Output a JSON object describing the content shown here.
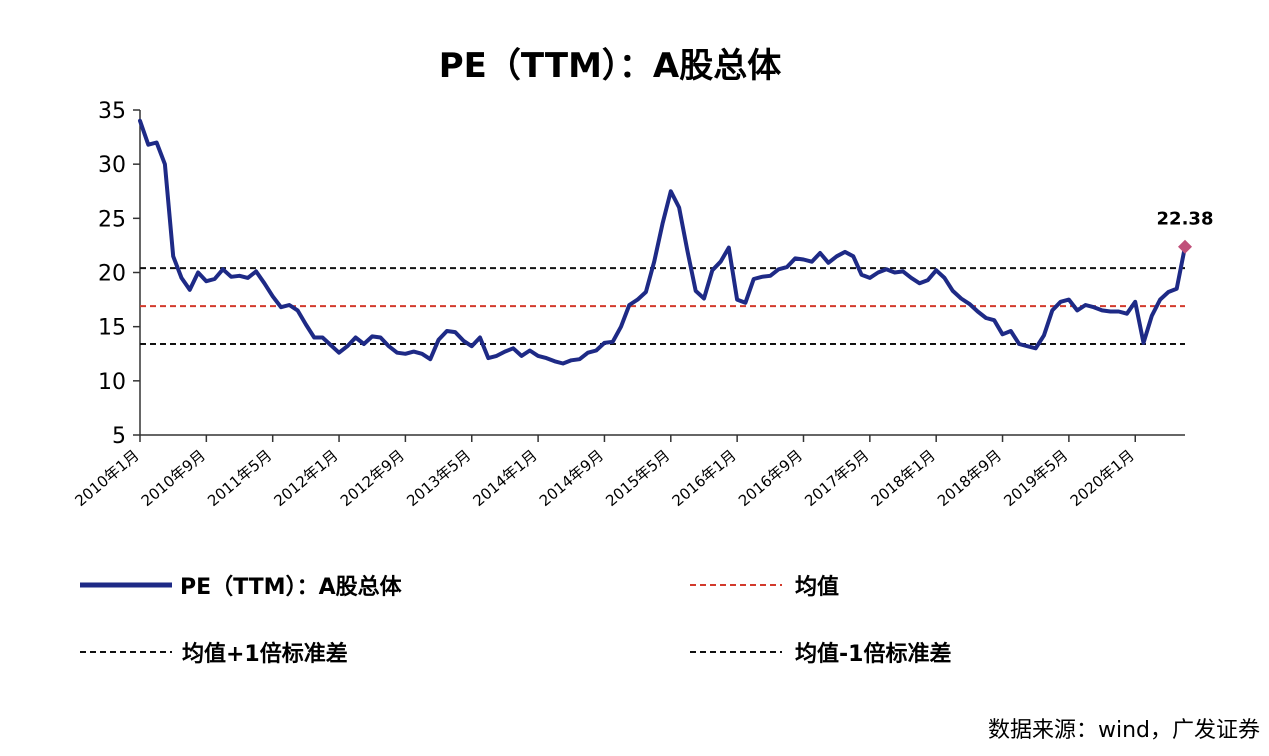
{
  "chart_data": {
    "type": "line",
    "title": "PE（TTM）：A股总体",
    "xlabel": "",
    "ylabel": "",
    "ylim": [
      5,
      35
    ],
    "yticks": [
      5,
      10,
      15,
      20,
      25,
      30,
      35
    ],
    "x_tick_labels": [
      "2010年1月",
      "2010年9月",
      "2011年5月",
      "2012年1月",
      "2012年9月",
      "2013年5月",
      "2014年1月",
      "2014年9月",
      "2015年5月",
      "2016年1月",
      "2016年9月",
      "2017年5月",
      "2018年1月",
      "2018年9月",
      "2019年5月",
      "2020年1月"
    ],
    "x_tick_month_index": [
      0,
      8,
      16,
      24,
      32,
      40,
      48,
      56,
      64,
      72,
      80,
      88,
      96,
      104,
      112,
      120
    ],
    "x_month_count": 127,
    "grid": false,
    "legend_position": "bottom",
    "series": [
      {
        "name": "PE（TTM）：A股总体",
        "color": "#1e2a86",
        "style": "solid",
        "points": [
          [
            0,
            34.0
          ],
          [
            1,
            31.8
          ],
          [
            2,
            32.0
          ],
          [
            3,
            30.0
          ],
          [
            4,
            21.5
          ],
          [
            5,
            19.5
          ],
          [
            6,
            18.4
          ],
          [
            7,
            20.0
          ],
          [
            8,
            19.2
          ],
          [
            9,
            19.4
          ],
          [
            10,
            20.3
          ],
          [
            11,
            19.6
          ],
          [
            12,
            19.7
          ],
          [
            13,
            19.5
          ],
          [
            14,
            20.1
          ],
          [
            15,
            19.0
          ],
          [
            16,
            17.8
          ],
          [
            17,
            16.8
          ],
          [
            18,
            17.0
          ],
          [
            19,
            16.5
          ],
          [
            20,
            15.2
          ],
          [
            21,
            14.0
          ],
          [
            22,
            14.0
          ],
          [
            23,
            13.3
          ],
          [
            24,
            12.6
          ],
          [
            25,
            13.2
          ],
          [
            26,
            14.0
          ],
          [
            27,
            13.4
          ],
          [
            28,
            14.1
          ],
          [
            29,
            14.0
          ],
          [
            30,
            13.2
          ],
          [
            31,
            12.6
          ],
          [
            32,
            12.5
          ],
          [
            33,
            12.7
          ],
          [
            34,
            12.5
          ],
          [
            35,
            12.0
          ],
          [
            36,
            13.8
          ],
          [
            37,
            14.6
          ],
          [
            38,
            14.5
          ],
          [
            39,
            13.7
          ],
          [
            40,
            13.2
          ],
          [
            41,
            14.0
          ],
          [
            42,
            12.1
          ],
          [
            43,
            12.3
          ],
          [
            44,
            12.7
          ],
          [
            45,
            13.0
          ],
          [
            46,
            12.3
          ],
          [
            47,
            12.8
          ],
          [
            48,
            12.3
          ],
          [
            49,
            12.1
          ],
          [
            50,
            11.8
          ],
          [
            51,
            11.6
          ],
          [
            52,
            11.9
          ],
          [
            53,
            12.0
          ],
          [
            54,
            12.6
          ],
          [
            55,
            12.8
          ],
          [
            56,
            13.5
          ],
          [
            57,
            13.6
          ],
          [
            58,
            15.0
          ],
          [
            59,
            17.0
          ],
          [
            60,
            17.5
          ],
          [
            61,
            18.2
          ],
          [
            62,
            21.0
          ],
          [
            63,
            24.5
          ],
          [
            64,
            27.5
          ],
          [
            65,
            26.0
          ],
          [
            66,
            22.0
          ],
          [
            67,
            18.3
          ],
          [
            68,
            17.6
          ],
          [
            69,
            20.2
          ],
          [
            70,
            21.0
          ],
          [
            71,
            22.3
          ],
          [
            72,
            17.5
          ],
          [
            73,
            17.2
          ],
          [
            74,
            19.4
          ],
          [
            75,
            19.6
          ],
          [
            76,
            19.7
          ],
          [
            77,
            20.3
          ],
          [
            78,
            20.5
          ],
          [
            79,
            21.3
          ],
          [
            80,
            21.2
          ],
          [
            81,
            21.0
          ],
          [
            82,
            21.8
          ],
          [
            83,
            20.9
          ],
          [
            84,
            21.5
          ],
          [
            85,
            21.9
          ],
          [
            86,
            21.5
          ],
          [
            87,
            19.8
          ],
          [
            88,
            19.5
          ],
          [
            89,
            20.0
          ],
          [
            90,
            20.3
          ],
          [
            91,
            20.0
          ],
          [
            92,
            20.1
          ],
          [
            93,
            19.5
          ],
          [
            94,
            19.0
          ],
          [
            95,
            19.3
          ],
          [
            96,
            20.2
          ],
          [
            97,
            19.5
          ],
          [
            98,
            18.3
          ],
          [
            99,
            17.6
          ],
          [
            100,
            17.1
          ],
          [
            101,
            16.4
          ],
          [
            102,
            15.8
          ],
          [
            103,
            15.6
          ],
          [
            104,
            14.3
          ],
          [
            105,
            14.6
          ],
          [
            106,
            13.4
          ],
          [
            107,
            13.2
          ],
          [
            108,
            13.0
          ],
          [
            109,
            14.2
          ],
          [
            110,
            16.5
          ],
          [
            111,
            17.3
          ],
          [
            112,
            17.5
          ],
          [
            113,
            16.5
          ],
          [
            114,
            17.0
          ],
          [
            115,
            16.8
          ],
          [
            116,
            16.5
          ],
          [
            117,
            16.4
          ],
          [
            118,
            16.4
          ],
          [
            119,
            16.2
          ],
          [
            120,
            17.3
          ],
          [
            121,
            13.5
          ],
          [
            122,
            16.0
          ],
          [
            123,
            17.5
          ],
          [
            124,
            18.2
          ],
          [
            125,
            18.5
          ],
          [
            126,
            22.38
          ]
        ]
      },
      {
        "name": "均值",
        "color": "#d23a2c",
        "style": "dashed",
        "value": 16.9
      },
      {
        "name": "均值+1倍标准差",
        "color": "#111111",
        "style": "dashed",
        "value": 20.4
      },
      {
        "name": "均值-1倍标准差",
        "color": "#111111",
        "style": "dashed",
        "value": 13.4
      }
    ],
    "annotation": {
      "text": "22.38",
      "month_index": 126,
      "value": 22.38,
      "marker_color": "#c0507a"
    }
  },
  "source_text": "数据来源：wind，广发证券"
}
